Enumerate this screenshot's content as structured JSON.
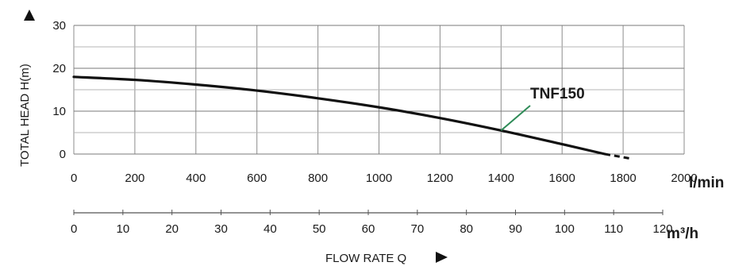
{
  "chart_data": {
    "type": "line",
    "ylabel": "TOTAL HEAD H(m)",
    "xlabel": "FLOW RATE Q",
    "y": {
      "ticks": [
        0,
        10,
        20,
        30
      ],
      "range": [
        0,
        30
      ],
      "unit": ""
    },
    "x_primary": {
      "unit": "l/min",
      "ticks": [
        0,
        200,
        400,
        600,
        800,
        1000,
        1200,
        1400,
        1600,
        1800,
        2000
      ],
      "range": [
        0,
        2000
      ]
    },
    "x_secondary": {
      "unit": "m³/h",
      "ticks": [
        0,
        10,
        20,
        30,
        40,
        50,
        60,
        70,
        80,
        90,
        100,
        110,
        120
      ],
      "range": [
        0,
        120
      ]
    },
    "grid": true,
    "series": [
      {
        "name": "TNF150",
        "x": [
          0,
          200,
          400,
          600,
          800,
          1000,
          1200,
          1400,
          1600,
          1740
        ],
        "y": [
          18,
          17.3,
          16.2,
          14.8,
          13,
          10.9,
          8.4,
          5.5,
          2.3,
          0
        ],
        "dashed_extension": {
          "x": [
            1740,
            1820
          ],
          "y": [
            0,
            -1
          ]
        },
        "color": "#111111"
      }
    ],
    "label_pointer_color": "#2e8b57"
  }
}
